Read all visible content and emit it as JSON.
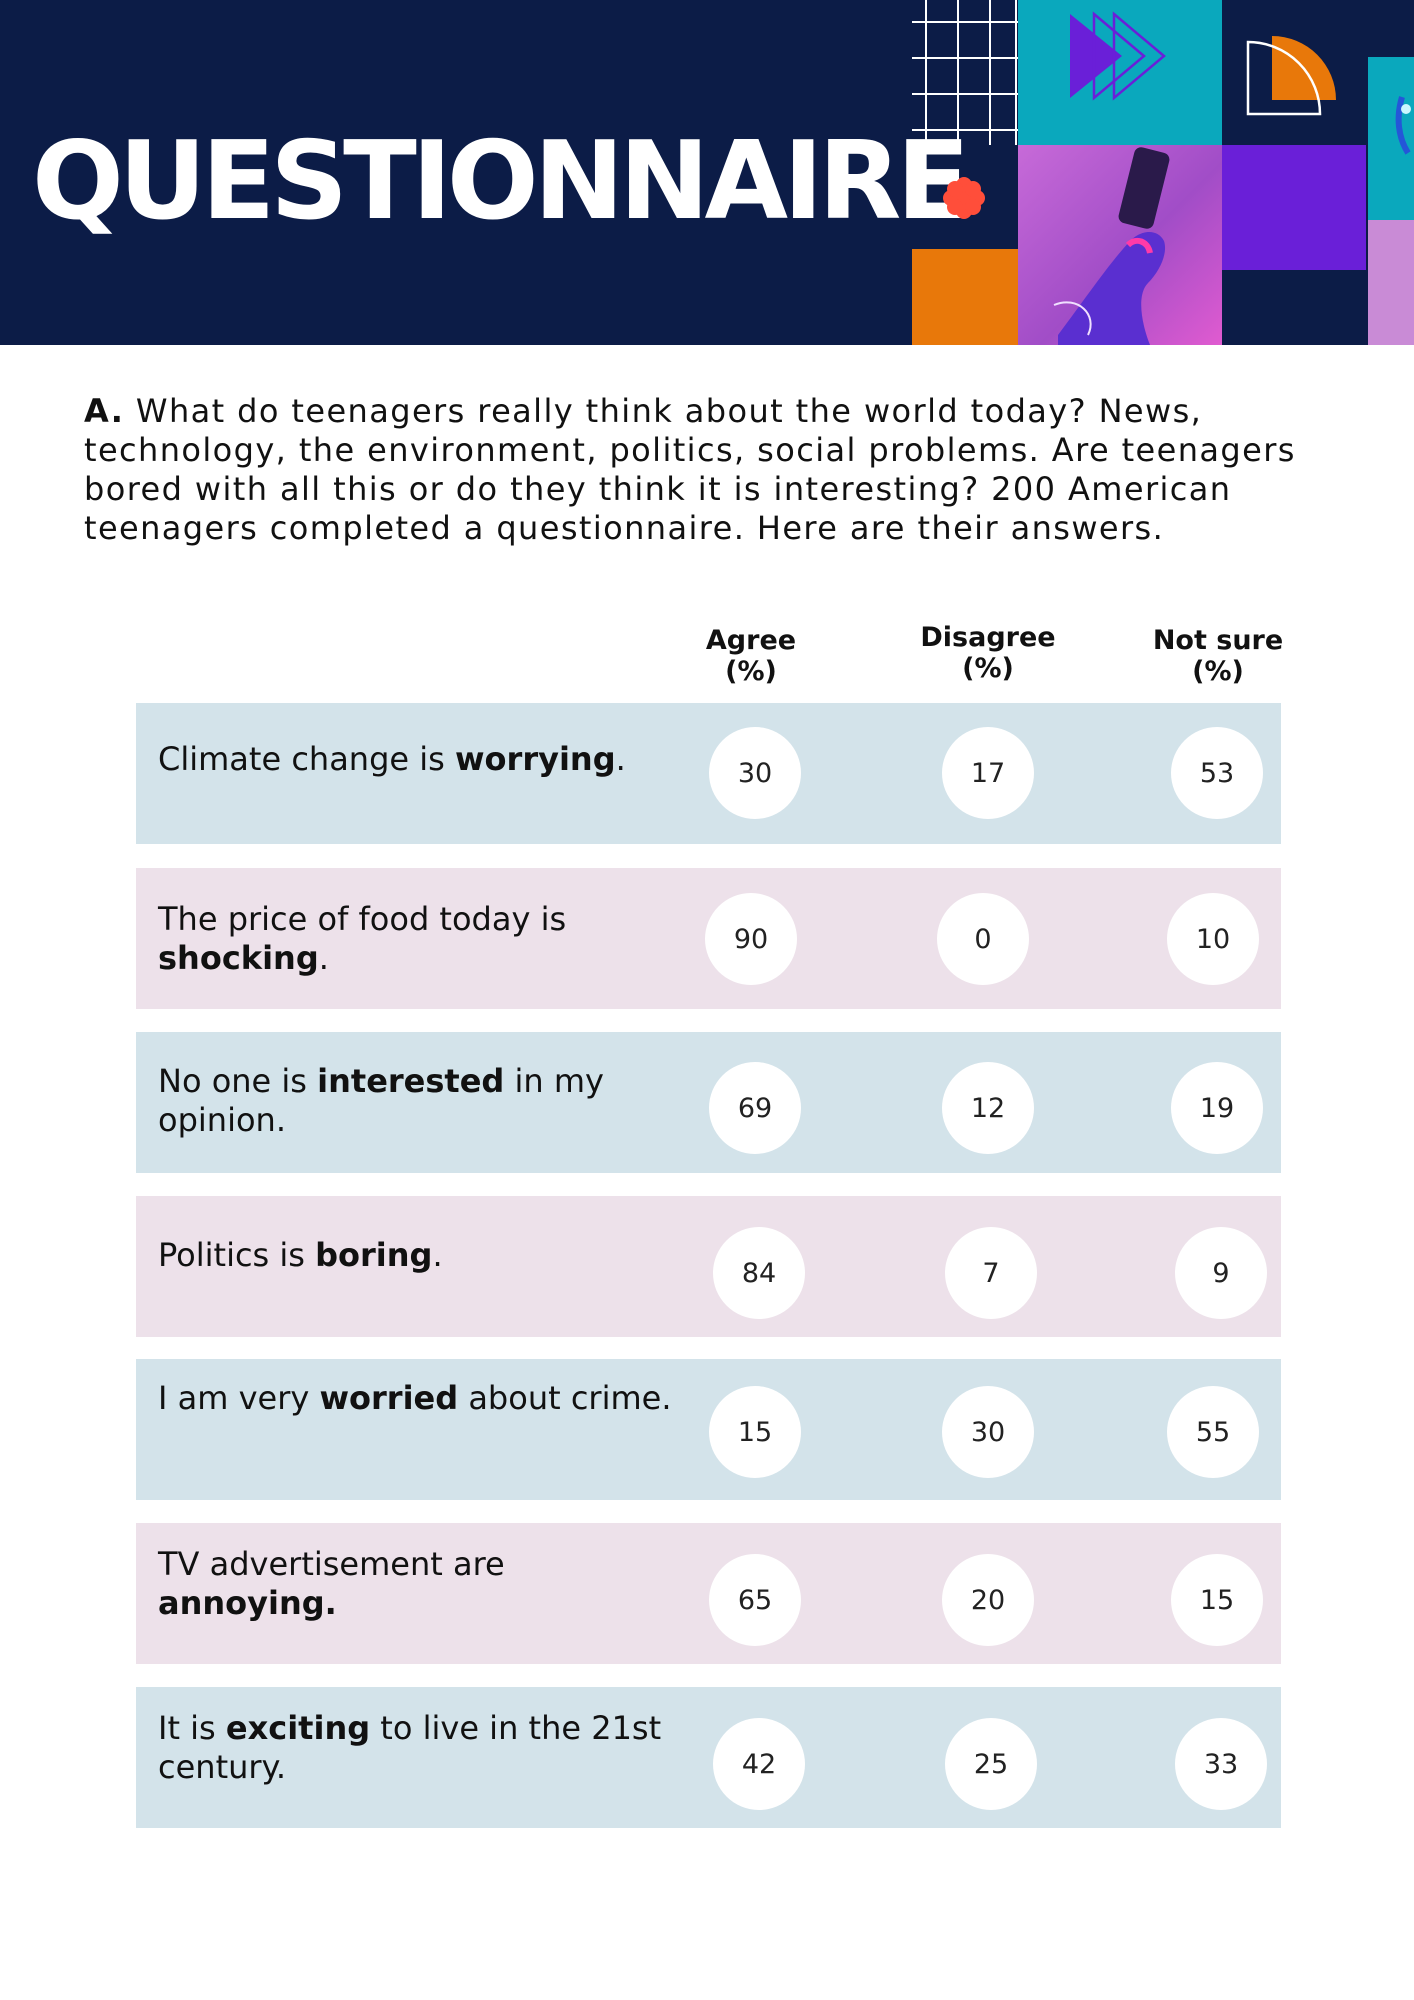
{
  "header": {
    "title": "QUESTIONNAIRE",
    "colors": {
      "navy": "#0c1c47",
      "teal": "#0aa8bd",
      "purple": "#6a1fd8",
      "orange": "#e8780a",
      "magenta": "#c45ed8",
      "lilac": "#c98bd6",
      "coral": "#ff4e3a"
    }
  },
  "intro": {
    "label": "A.",
    "text": "What do teenagers really think about the world today? News, technology, the environment, politics, social problems. Are teenagers bored with all this or do they think it is interesting? 200 American teenagers completed a questionnaire. Here are their answers."
  },
  "columns": [
    {
      "line1": "Agree",
      "line2": "(%)"
    },
    {
      "line1": "Disagree",
      "line2": "(%)"
    },
    {
      "line1": "Not sure",
      "line2": "(%)"
    }
  ],
  "rows": [
    {
      "before": "Climate change is ",
      "bold": "worrying",
      "after": ".",
      "agree": "30",
      "disagree": "17",
      "not_sure": "53",
      "color": "#d3e3ea"
    },
    {
      "before": "The price of food today is ",
      "bold": "shocking",
      "after": ".",
      "agree": "90",
      "disagree": "0",
      "not_sure": "10",
      "color": "#ede1ea"
    },
    {
      "before": "No one is ",
      "bold": "interested",
      "after": " in my opinion.",
      "agree": "69",
      "disagree": "12",
      "not_sure": "19",
      "color": "#d3e3ea"
    },
    {
      "before": "Politics is ",
      "bold": "boring",
      "after": ".",
      "agree": "84",
      "disagree": "7",
      "not_sure": "9",
      "color": "#ede1ea"
    },
    {
      "before": "I am very ",
      "bold": "worried",
      "after": " about crime.",
      "agree": "15",
      "disagree": "30",
      "not_sure": "55",
      "color": "#d3e3ea"
    },
    {
      "before": "TV advertisement are ",
      "bold": "annoying.",
      "after": "",
      "agree": "65",
      "disagree": "20",
      "not_sure": "15",
      "color": "#ede1ea"
    },
    {
      "before": "It is ",
      "bold": "exciting",
      "after": " to live in the 21st century.",
      "agree": "42",
      "disagree": "25",
      "not_sure": "33",
      "color": "#d3e3ea"
    }
  ]
}
